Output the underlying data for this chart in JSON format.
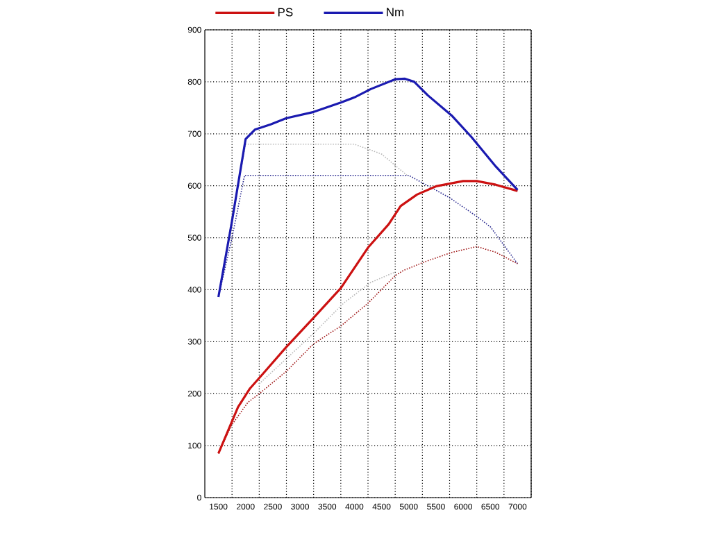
{
  "chart_data": {
    "type": "line",
    "xlim": [
      1250,
      7250
    ],
    "ylim": [
      0,
      900
    ],
    "xticks": [
      1500,
      {
        "value": 1750,
        "label": null
      },
      2000,
      {
        "value": 2250,
        "label": null
      },
      2500,
      {
        "value": 2750,
        "label": null
      },
      3000,
      {
        "value": 3250,
        "label": null
      },
      3500,
      {
        "value": 3750,
        "label": null
      },
      4000,
      {
        "value": 4250,
        "label": null
      },
      4500,
      {
        "value": 4750,
        "label": null
      },
      5000,
      {
        "value": 5250,
        "label": null
      },
      5500,
      {
        "value": 5750,
        "label": null
      },
      6000,
      {
        "value": 6250,
        "label": null
      },
      6500,
      {
        "value": 6750,
        "label": null
      },
      7000,
      {
        "value": 7250,
        "label": null
      }
    ],
    "yticks": [
      0,
      100,
      200,
      300,
      400,
      500,
      600,
      700,
      800,
      900
    ],
    "grid": true,
    "legend": "top left",
    "series": [
      {
        "name": "PS",
        "color": "#cc1111",
        "line_style": "solid",
        "x": [
          1500,
          1860,
          2080,
          2300,
          2750,
          3250,
          3750,
          4250,
          4630,
          4850,
          5150,
          5500,
          6000,
          6250,
          6600,
          7000
        ],
        "values": [
          85,
          174,
          210,
          236,
          290,
          346,
          403,
          481,
          526,
          561,
          583,
          599,
          609,
          609,
          602,
          590
        ]
      },
      {
        "name": "Nm",
        "color": "#1a1ab0",
        "line_style": "solid",
        "x": [
          1500,
          1740,
          2000,
          2170,
          2460,
          2750,
          3250,
          3750,
          4000,
          4300,
          4750,
          4930,
          5100,
          5350,
          5800,
          6150,
          6600,
          7000
        ],
        "values": [
          386,
          526,
          690,
          708,
          718,
          730,
          742,
          760,
          770,
          786,
          805,
          806,
          800,
          774,
          734,
          694,
          637,
          592
        ]
      },
      {
        "color": "#b8b8b8",
        "line_style": "dotted",
        "x": [
          1500,
          1750,
          2000,
          4000,
          4500,
          4980
        ],
        "values": [
          386,
          540,
          680,
          680,
          661,
          619
        ]
      },
      {
        "color": "#b8b8b8",
        "line_style": "dotted",
        "x": [
          2250,
          3250,
          3800,
          4300,
          4750
        ],
        "values": [
          219,
          316,
          374,
          414,
          434
        ]
      },
      {
        "color": "#2a2a90",
        "line_style": "dotted",
        "x": [
          1500,
          1750,
          1980,
          5000,
          5750,
          6250,
          6500,
          7000
        ],
        "values": [
          386,
          500,
          620,
          620,
          577,
          541,
          521,
          450
        ]
      },
      {
        "color": "#a01818",
        "line_style": "dotted",
        "x": [
          1500,
          1740,
          2040,
          2250,
          2750,
          3250,
          3750,
          4250,
          4750,
          4900,
          5300,
          5800,
          6250,
          6600,
          7000
        ],
        "values": [
          85,
          139,
          183,
          200,
          243,
          296,
          330,
          374,
          427,
          437,
          454,
          472,
          483,
          472,
          450
        ]
      }
    ]
  }
}
